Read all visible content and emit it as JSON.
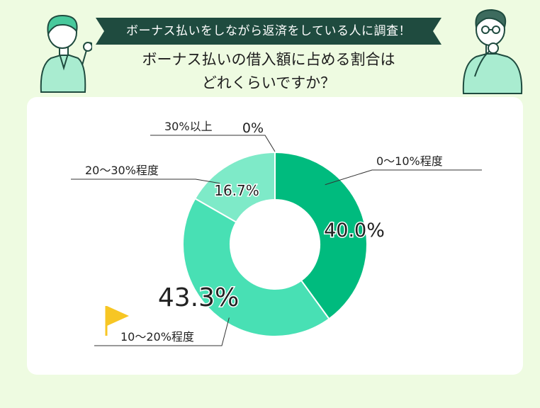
{
  "banner": {
    "text": "ボーナス払いをしながら返済をしている人に調査！"
  },
  "heading": {
    "line1": "ボーナス払いの借入額に占める割合は",
    "line2": "どれくらいですか？"
  },
  "colors": {
    "background": "#eefbe1",
    "banner": "#1f4b3f",
    "slice_0_10": "#00bb7e",
    "slice_10_20": "#48e0b4",
    "slice_20_30": "#7eeac8",
    "slice_30plus": "#b8f3df",
    "flag": "#f7c624"
  },
  "chart_data": {
    "type": "pie",
    "style": "donut",
    "slices": [
      {
        "label": "0〜10%程度",
        "value": 40.0,
        "value_label": "40.0%"
      },
      {
        "label": "10〜20%程度",
        "value": 43.3,
        "value_label": "43.3%"
      },
      {
        "label": "20〜30%程度",
        "value": 16.7,
        "value_label": "16.7%"
      },
      {
        "label": "30%以上",
        "value": 0,
        "value_label": "0%"
      }
    ],
    "highlight": "10〜20%程度",
    "title": "",
    "legend": "none"
  }
}
